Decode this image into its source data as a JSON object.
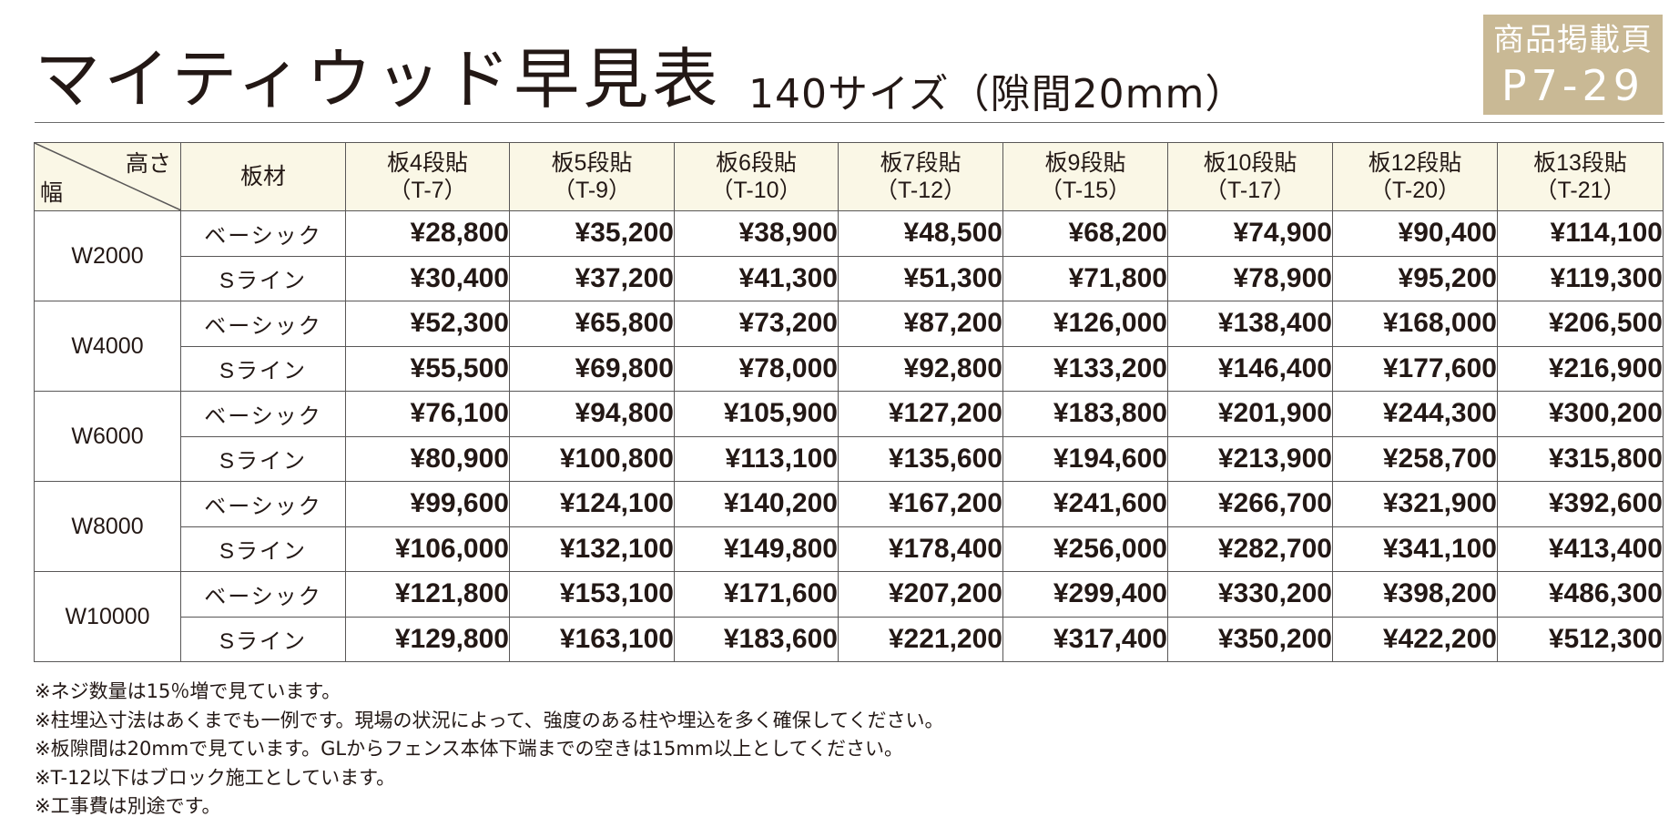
{
  "title": "マイティウッド早見表",
  "subtitle": "140サイズ（隙間20mm）",
  "badge": {
    "label": "商品掲載頁",
    "page": "P7-29"
  },
  "table": {
    "corner_top": "高さ",
    "corner_bottom": "幅",
    "material_header": "板材",
    "columns": [
      {
        "label": "板4段貼",
        "code": "（T-7）"
      },
      {
        "label": "板5段貼",
        "code": "（T-9）"
      },
      {
        "label": "板6段貼",
        "code": "（T-10）"
      },
      {
        "label": "板7段貼",
        "code": "（T-12）"
      },
      {
        "label": "板9段貼",
        "code": "（T-15）"
      },
      {
        "label": "板10段貼",
        "code": "（T-17）"
      },
      {
        "label": "板12段貼",
        "code": "（T-20）"
      },
      {
        "label": "板13段貼",
        "code": "（T-21）"
      }
    ],
    "groups": [
      {
        "width": "W2000",
        "rows": [
          {
            "material": "ベーシック",
            "prices": [
              "¥28,800",
              "¥35,200",
              "¥38,900",
              "¥48,500",
              "¥68,200",
              "¥74,900",
              "¥90,400",
              "¥114,100"
            ]
          },
          {
            "material": "Sライン",
            "prices": [
              "¥30,400",
              "¥37,200",
              "¥41,300",
              "¥51,300",
              "¥71,800",
              "¥78,900",
              "¥95,200",
              "¥119,300"
            ]
          }
        ]
      },
      {
        "width": "W4000",
        "rows": [
          {
            "material": "ベーシック",
            "prices": [
              "¥52,300",
              "¥65,800",
              "¥73,200",
              "¥87,200",
              "¥126,000",
              "¥138,400",
              "¥168,000",
              "¥206,500"
            ]
          },
          {
            "material": "Sライン",
            "prices": [
              "¥55,500",
              "¥69,800",
              "¥78,000",
              "¥92,800",
              "¥133,200",
              "¥146,400",
              "¥177,600",
              "¥216,900"
            ]
          }
        ]
      },
      {
        "width": "W6000",
        "rows": [
          {
            "material": "ベーシック",
            "prices": [
              "¥76,100",
              "¥94,800",
              "¥105,900",
              "¥127,200",
              "¥183,800",
              "¥201,900",
              "¥244,300",
              "¥300,200"
            ]
          },
          {
            "material": "Sライン",
            "prices": [
              "¥80,900",
              "¥100,800",
              "¥113,100",
              "¥135,600",
              "¥194,600",
              "¥213,900",
              "¥258,700",
              "¥315,800"
            ]
          }
        ]
      },
      {
        "width": "W8000",
        "rows": [
          {
            "material": "ベーシック",
            "prices": [
              "¥99,600",
              "¥124,100",
              "¥140,200",
              "¥167,200",
              "¥241,600",
              "¥266,700",
              "¥321,900",
              "¥392,600"
            ]
          },
          {
            "material": "Sライン",
            "prices": [
              "¥106,000",
              "¥132,100",
              "¥149,800",
              "¥178,400",
              "¥256,000",
              "¥282,700",
              "¥341,100",
              "¥413,400"
            ]
          }
        ]
      },
      {
        "width": "W10000",
        "rows": [
          {
            "material": "ベーシック",
            "prices": [
              "¥121,800",
              "¥153,100",
              "¥171,600",
              "¥207,200",
              "¥299,400",
              "¥330,200",
              "¥398,200",
              "¥486,300"
            ]
          },
          {
            "material": "Sライン",
            "prices": [
              "¥129,800",
              "¥163,100",
              "¥183,600",
              "¥221,200",
              "¥317,400",
              "¥350,200",
              "¥422,200",
              "¥512,300"
            ]
          }
        ]
      }
    ]
  },
  "notes": [
    "※ネジ数量は15％増で見ています。",
    "※柱埋込寸法はあくまでも一例です。現場の状況によって、強度のある柱や埋込を多く確保してください。",
    "※板隙間は20mmで見ています。GLからフェンス本体下端までの空きは15mm以上としてください。",
    "※T-12以下はブロック施工としています。",
    "※工事費は別途です。"
  ],
  "colors": {
    "badge_bg": "#c9b995",
    "header_bg": "#faf7e6",
    "text": "#231815",
    "border": "#595757"
  }
}
